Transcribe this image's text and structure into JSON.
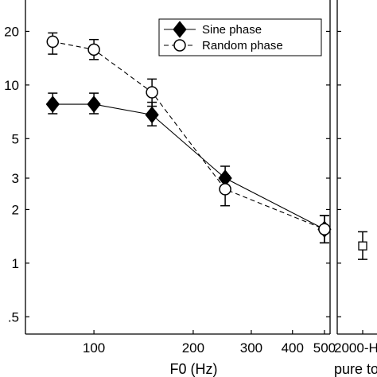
{
  "chart_data": [
    {
      "type": "line",
      "scale": {
        "x": "log",
        "y": "log"
      },
      "xlabel": "F0 (Hz)",
      "ylabel": "",
      "xlim": [
        62,
        520
      ],
      "ylim": [
        0.4,
        30
      ],
      "x_ticks": [
        100,
        200,
        300,
        400,
        500
      ],
      "x_tick_labels": [
        "100",
        "200",
        "300",
        "400",
        "500"
      ],
      "y_ticks": [
        0.5,
        1,
        2,
        3,
        5,
        10,
        20
      ],
      "y_tick_labels": [
        ".5",
        "1",
        "2",
        "3",
        "5",
        "10",
        "20"
      ],
      "legend_position": "top-right",
      "series": [
        {
          "name": "Sine phase",
          "marker": "filled-diamond",
          "line": "solid",
          "x": [
            75,
            100,
            150,
            250,
            500
          ],
          "y": [
            7.8,
            7.8,
            6.8,
            3.0,
            1.55
          ],
          "err_low": [
            6.9,
            6.9,
            5.9,
            2.6,
            1.3
          ],
          "err_high": [
            9.0,
            9.0,
            8.0,
            3.5,
            1.85
          ]
        },
        {
          "name": "Random phase",
          "marker": "open-circle",
          "line": "dashed",
          "x": [
            75,
            100,
            150,
            250,
            500
          ],
          "y": [
            17.5,
            15.8,
            9.1,
            2.6,
            1.55
          ],
          "err_low": [
            14.9,
            13.9,
            7.6,
            2.1,
            1.3
          ],
          "err_high": [
            19.6,
            18.0,
            10.8,
            3.1,
            1.85
          ]
        }
      ]
    },
    {
      "type": "scatter",
      "scale": {
        "y": "log"
      },
      "xlabel": "pure to",
      "x_tick_labels": [
        "2000-H"
      ],
      "series": [
        {
          "marker": "open-square",
          "y": [
            1.25
          ],
          "err_low": [
            1.05
          ],
          "err_high": [
            1.5
          ]
        }
      ]
    }
  ],
  "colors": {
    "axis": "#000000",
    "grid": "none",
    "background": "#ffffff"
  }
}
